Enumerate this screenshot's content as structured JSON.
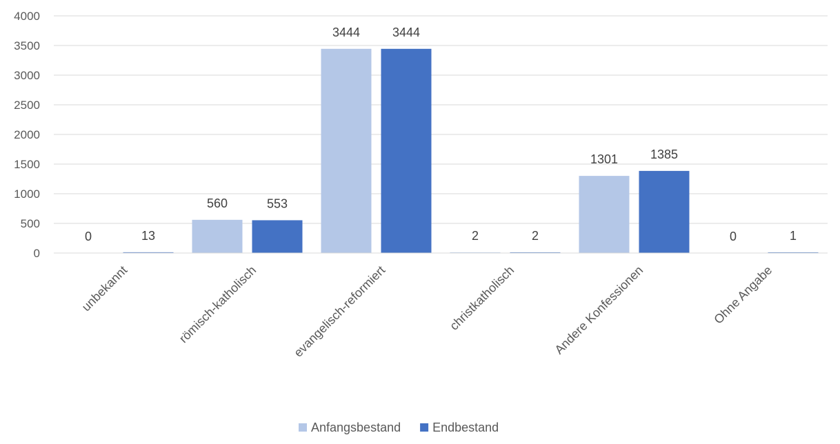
{
  "chart_data": {
    "type": "bar",
    "categories": [
      "unbekannt",
      "römisch-katholisch",
      "evangelisch-reformiert",
      "christkatholisch",
      "Andere Konfessionen",
      "Ohne Angabe"
    ],
    "series": [
      {
        "name": "Anfangsbestand",
        "values": [
          0,
          560,
          3444,
          2,
          1301,
          0
        ],
        "color": "#b4c7e7"
      },
      {
        "name": "Endbestand",
        "values": [
          13,
          553,
          3444,
          2,
          1385,
          1
        ],
        "color": "#4472c4"
      }
    ],
    "yticks": [
      "0",
      "500",
      "1000",
      "1500",
      "2000",
      "2500",
      "3000",
      "3500",
      "4000"
    ],
    "ylim": [
      0,
      4000
    ],
    "grid": true,
    "legend": "bottom"
  }
}
